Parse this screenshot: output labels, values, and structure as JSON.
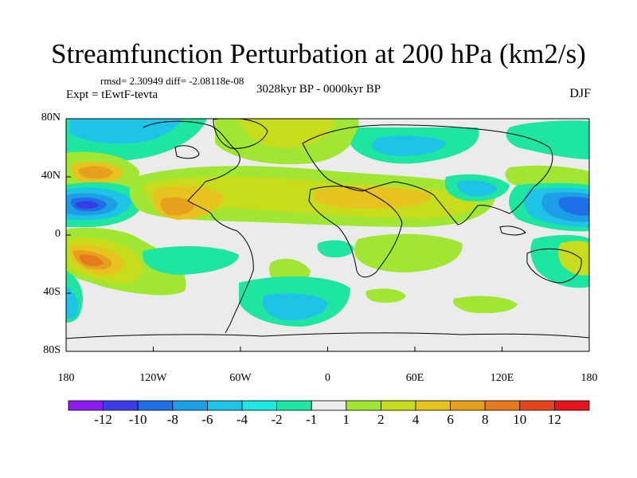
{
  "title": "Streamfunction Perturbation at 200 hPa (km2/s)",
  "stats": "rmsd= 2.30949 diff= -2.08118e-08",
  "experiment": "Expt = tEwtF-tevta",
  "period": "3028kyr BP - 0000kyr BP",
  "season": "DJF",
  "lat_labels": [
    "80N",
    "40N",
    "0",
    "40S",
    "80S"
  ],
  "lon_labels": [
    "180",
    "120W",
    "60W",
    "0",
    "60E",
    "120E",
    "180"
  ],
  "colorbar": {
    "labels": [
      "-12",
      "-10",
      "-8",
      "-6",
      "-4",
      "-2",
      "-1",
      "1",
      "2",
      "4",
      "6",
      "8",
      "10",
      "12"
    ],
    "colors": [
      "#8a1ef0",
      "#3c3ce6",
      "#1e6ee6",
      "#1e9ee6",
      "#1ec3e6",
      "#1ee6e1",
      "#1ee6a0",
      "#ebebeb",
      "#a0e632",
      "#c8dc1e",
      "#e6c31e",
      "#e6a01e",
      "#e6781e",
      "#e6461e",
      "#e6141e"
    ]
  },
  "palette": {
    "neutral": "#ebebeb",
    "land_outline": "#000000"
  }
}
